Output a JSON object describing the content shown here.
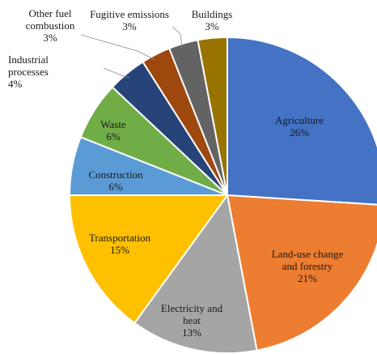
{
  "chart_data": {
    "type": "pie",
    "title": "",
    "start_angle_deg": 0,
    "direction": "clockwise",
    "legend": "none",
    "slices": [
      {
        "label_lines": [
          "Agriculture"
        ],
        "value": 26,
        "value_label": "26%",
        "color": "#4472C4"
      },
      {
        "label_lines": [
          "Land-use change",
          "and forestry"
        ],
        "value": 21,
        "value_label": "21%",
        "color": "#ED7D31"
      },
      {
        "label_lines": [
          "Electricity and",
          "heat"
        ],
        "value": 13,
        "value_label": "13%",
        "color": "#A5A5A5"
      },
      {
        "label_lines": [
          "Transportation"
        ],
        "value": 15,
        "value_label": "15%",
        "color": "#FFC000"
      },
      {
        "label_lines": [
          "Construction"
        ],
        "value": 6,
        "value_label": "6%",
        "color": "#5B9BD5"
      },
      {
        "label_lines": [
          "Waste"
        ],
        "value": 6,
        "value_label": "6%",
        "color": "#70AD47"
      },
      {
        "label_lines": [
          "Industrial",
          "processes"
        ],
        "value": 4,
        "value_label": "4%",
        "color": "#264478"
      },
      {
        "label_lines": [
          "Other fuel",
          "combustion"
        ],
        "value": 3,
        "value_label": "3%",
        "color": "#9E480E"
      },
      {
        "label_lines": [
          "Fugitive emissions"
        ],
        "value": 3,
        "value_label": "3%",
        "color": "#636363"
      },
      {
        "label_lines": [
          "Buildings"
        ],
        "value": 3,
        "value_label": "3%",
        "color": "#997300"
      }
    ]
  }
}
